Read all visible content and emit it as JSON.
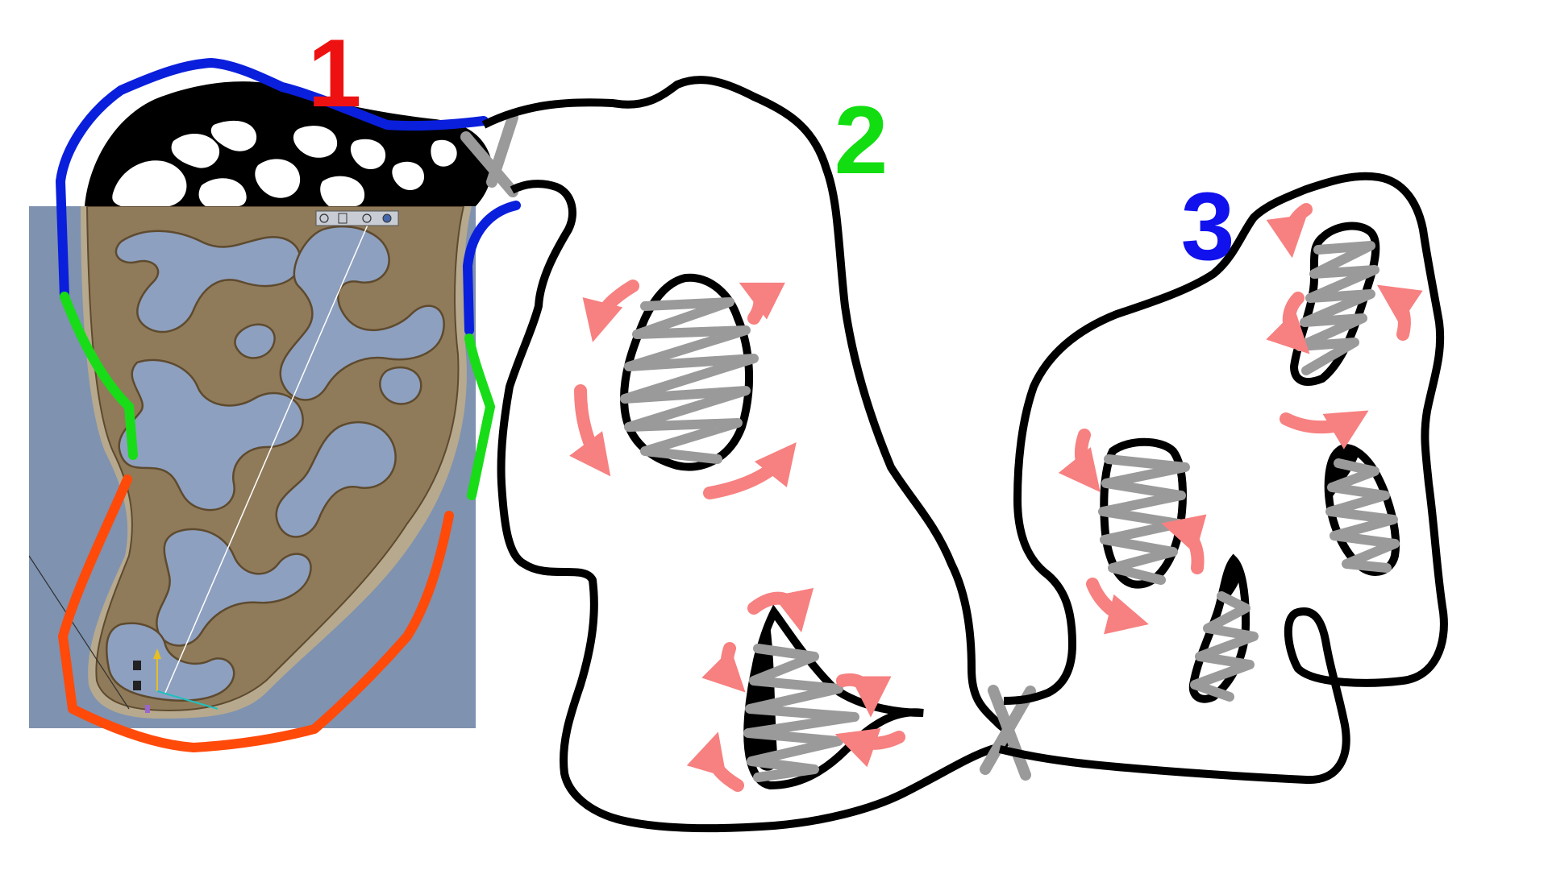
{
  "zones": [
    {
      "id": "1",
      "label": "1",
      "color": "#ee1111"
    },
    {
      "id": "2",
      "label": "2",
      "color": "#11dd11"
    },
    {
      "id": "3",
      "label": "3",
      "color": "#1111ee"
    }
  ],
  "colors": {
    "outline": "#000000",
    "screenshot_bg": "#7f92b0",
    "terrain": "#8f7b5a",
    "terrain_dark": "#5e4a2e",
    "water": "#8ea0bf",
    "edge_blue": "#0a1fdc",
    "edge_green": "#18dc18",
    "edge_orange": "#ff4a0a",
    "cross": "#9a9a9a",
    "zigzag": "#9a9a9a",
    "arrow": "#f78080"
  },
  "icons": [
    "pivot-axis-icon",
    "toolbar-icons",
    "cross-mark-icon",
    "flow-arrow-icon"
  ]
}
